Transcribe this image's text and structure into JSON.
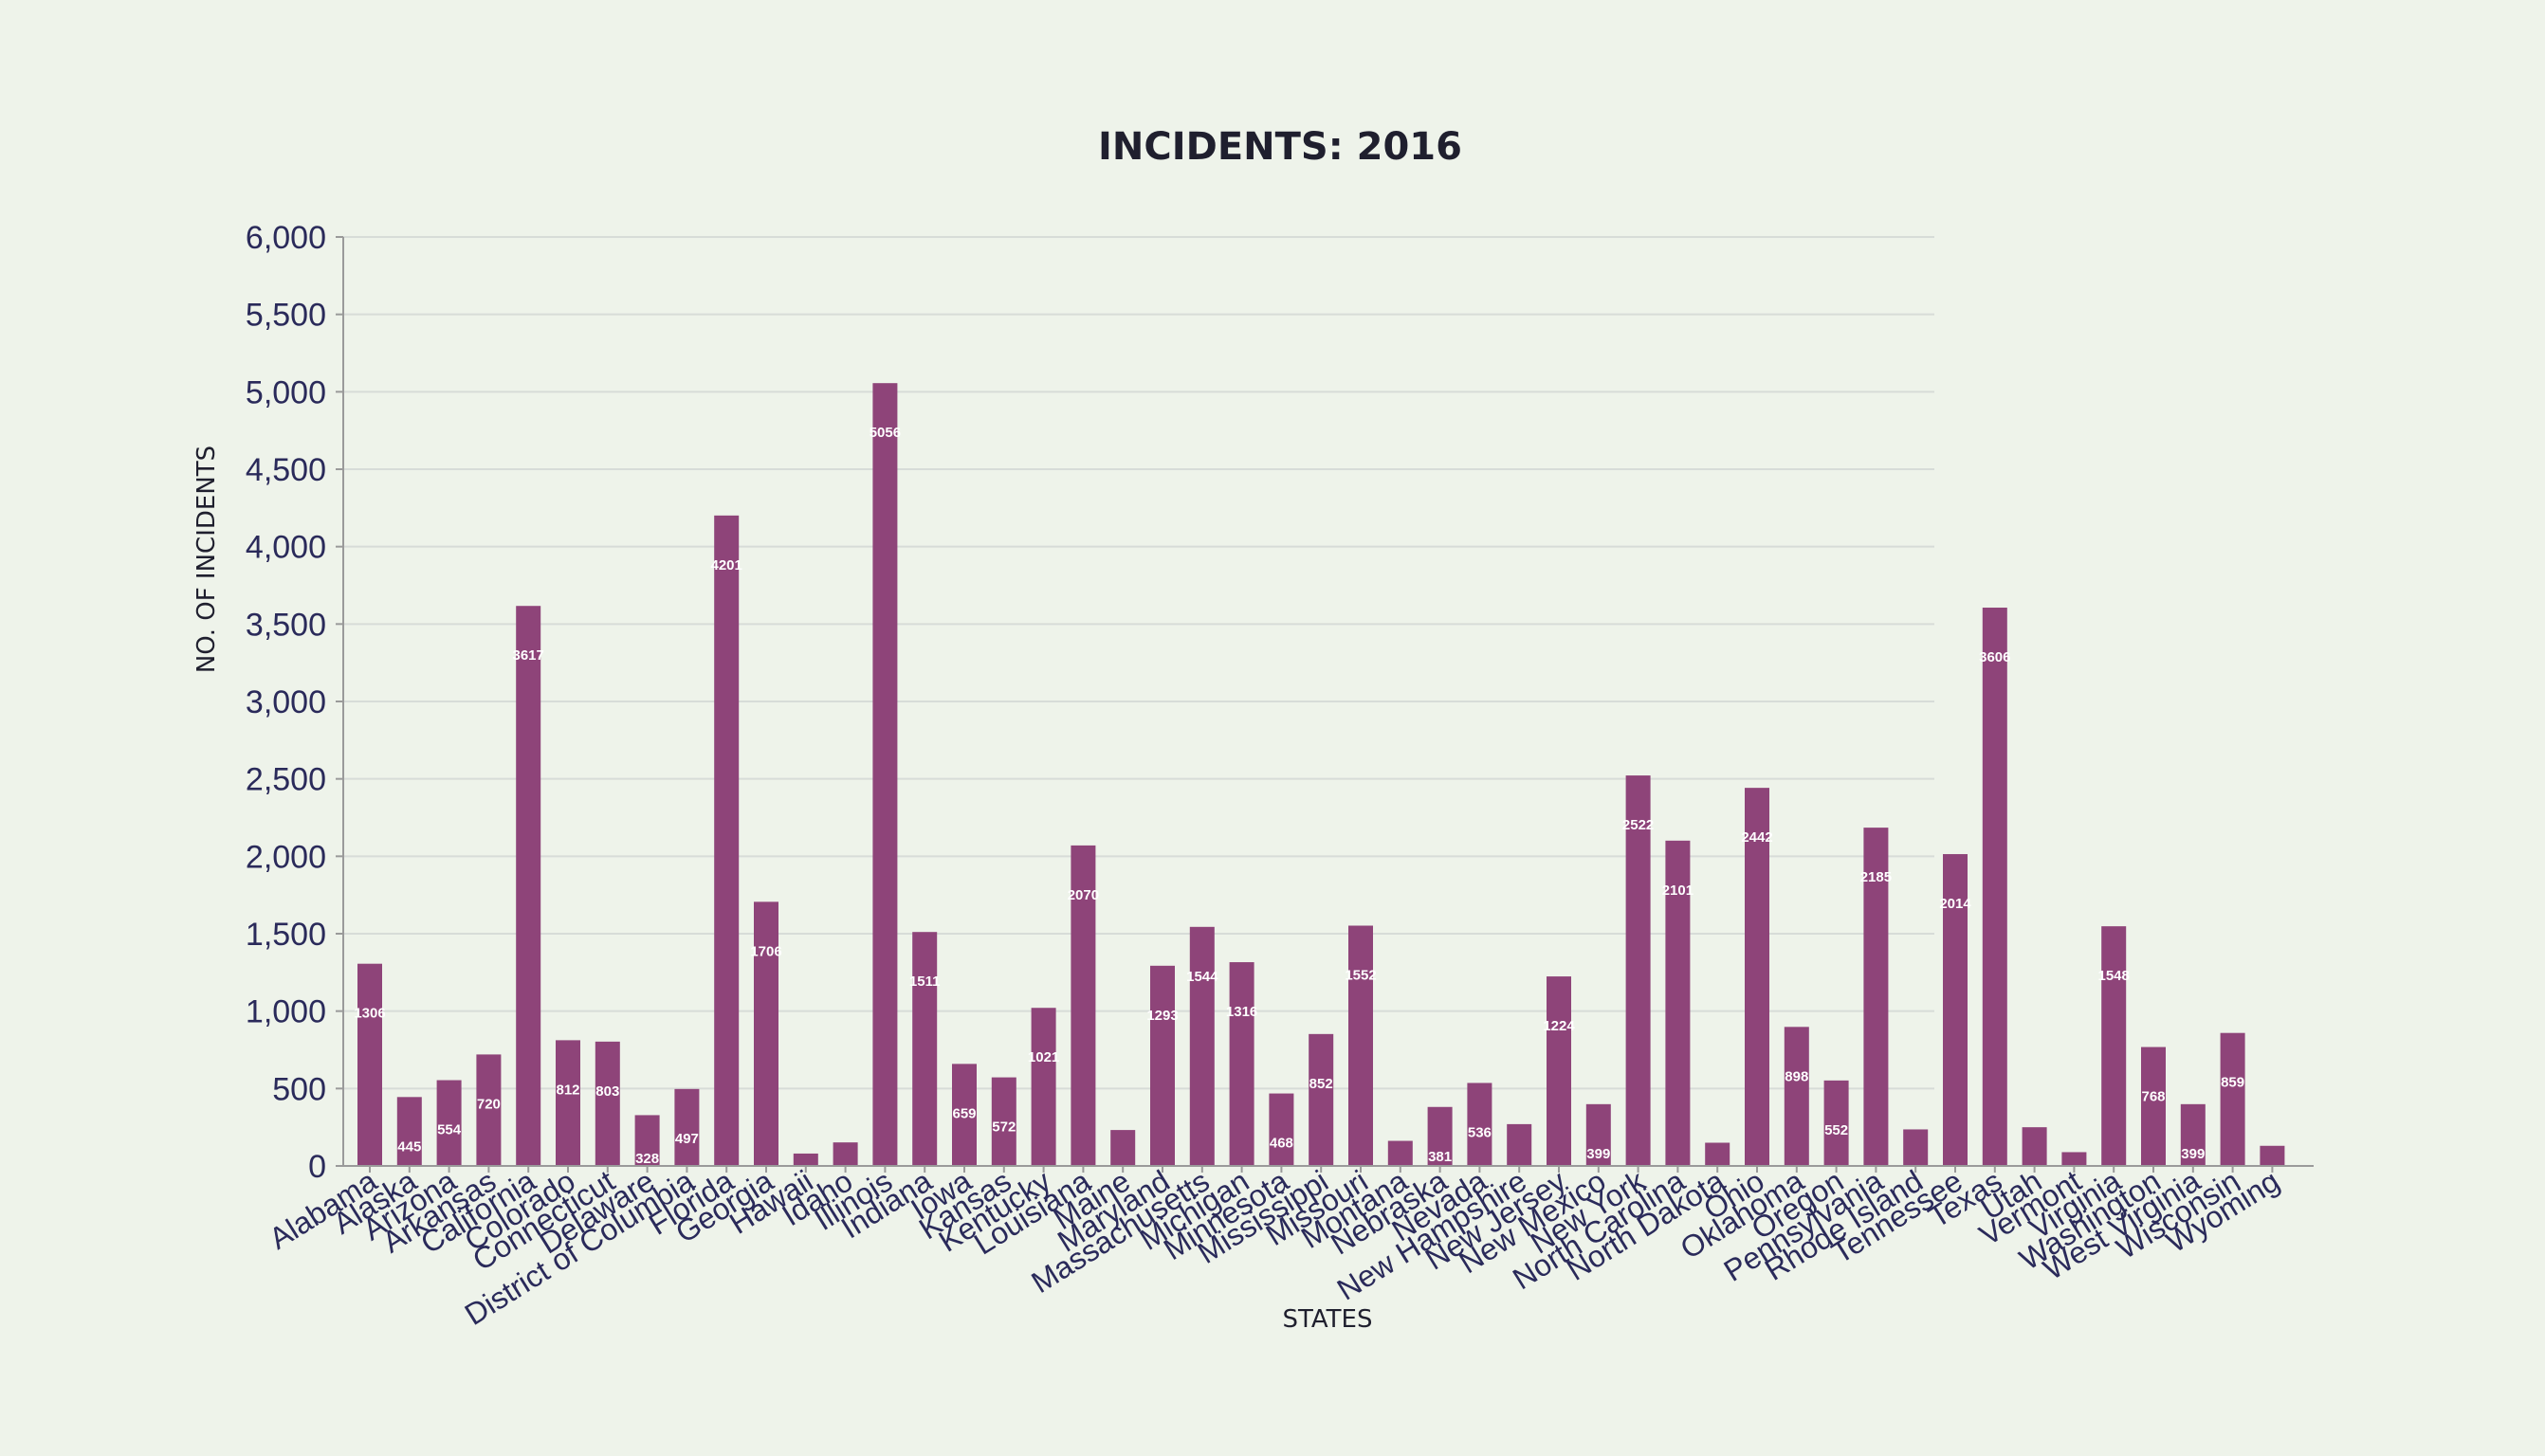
{
  "chart_data": {
    "type": "bar",
    "title": "INCIDENTS: 2016",
    "xlabel": "STATES",
    "ylabel": "NO. OF INCIDENTS",
    "ylim": [
      0,
      6000
    ],
    "ytick_step": 500,
    "grid": true,
    "bar_color": "#8e4479",
    "background": "#eef3ea",
    "categories": [
      "Alabama",
      "Alaska",
      "Arizona",
      "Arkansas",
      "California",
      "Colorado",
      "Connecticut",
      "Delaware",
      "District of Columbia",
      "Florida",
      "Georgia",
      "Hawaii",
      "Idaho",
      "Illinois",
      "Indiana",
      "Iowa",
      "Kansas",
      "Kentucky",
      "Louisiana",
      "Maine",
      "Maryland",
      "Massachusetts",
      "Michigan",
      "Minnesota",
      "Mississippi",
      "Missouri",
      "Montana",
      "Nebraska",
      "Nevada",
      "New Hampshire",
      "New Jersey",
      "New Mexico",
      "New York",
      "North Carolina",
      "North Dakota",
      "Ohio",
      "Oklahoma",
      "Oregon",
      "Pennsylvania",
      "Rhode Island",
      "Tennessee",
      "Texas",
      "Utah",
      "Vermont",
      "Virginia",
      "Washington",
      "West Virginia",
      "Wisconsin",
      "Wyoming"
    ],
    "values": [
      1306,
      445,
      554,
      720,
      3617,
      812,
      803,
      328,
      497,
      4201,
      1706,
      80,
      152,
      5056,
      1511,
      659,
      572,
      1021,
      2070,
      232,
      1293,
      1544,
      1316,
      468,
      852,
      1552,
      162,
      381,
      536,
      270,
      1224,
      399,
      2522,
      2101,
      150,
      2442,
      898,
      552,
      2185,
      236,
      2014,
      3606,
      250,
      89,
      1548,
      768,
      399,
      859,
      130
    ],
    "value_labels": [
      "1306",
      "445",
      "554",
      "720",
      "3617",
      "812",
      "803",
      "328",
      "497",
      "4201",
      "1706",
      "",
      "",
      "5056",
      "1511",
      "659",
      "572",
      "1021",
      "2070",
      "",
      "1293",
      "1544",
      "1316",
      "468",
      "852",
      "1552",
      "",
      "381",
      "536",
      "",
      "1224",
      "399",
      "2522",
      "2101",
      "",
      "2442",
      "898",
      "552",
      "2185",
      "",
      "2014",
      "3606",
      "",
      "",
      "1548",
      "768",
      "399",
      "859",
      ""
    ]
  }
}
